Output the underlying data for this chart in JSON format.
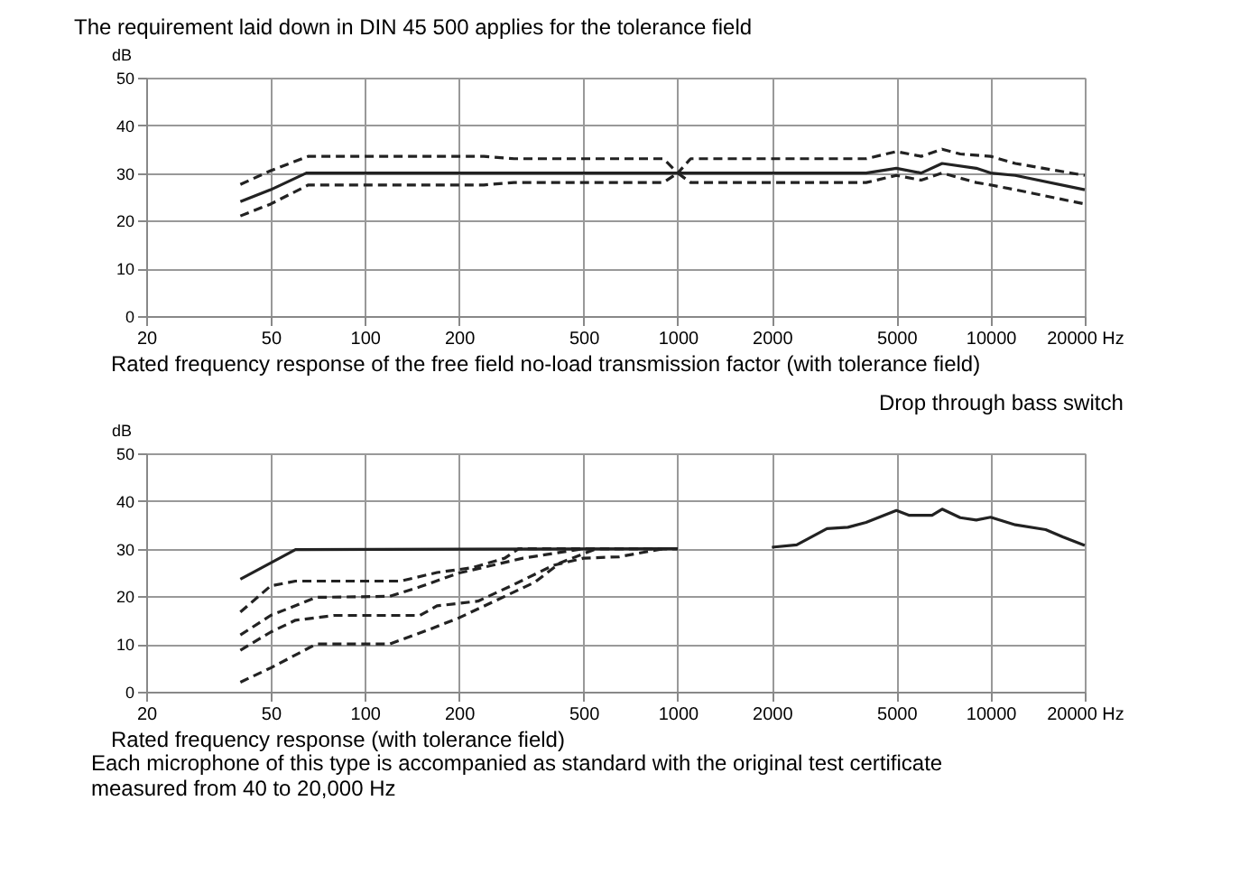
{
  "chart_data": [
    {
      "type": "line",
      "title": "The requirement laid down in DIN 45 500 applies for the tolerance field",
      "xlabel": "Rated frequency response of the free field no-load transmission factor (with tolerance field)",
      "ylabel": "dB",
      "log": "x",
      "grid": true,
      "xlim": [
        20,
        20000
      ],
      "ylim": [
        0,
        50
      ],
      "xticks": [
        20,
        50,
        100,
        200,
        500,
        1000,
        2000,
        5000,
        10000,
        {
          "value": 20000,
          "label": "20000 Hz"
        }
      ],
      "yticks": [
        0,
        10,
        20,
        30,
        40,
        50
      ],
      "series": [
        {
          "color": "#222222",
          "line_style": "dashed",
          "x": [
            40,
            50,
            66,
            240,
            300,
            900,
            1000,
            1100,
            4000,
            5000,
            6000,
            7000,
            8000,
            10000,
            12000,
            20000
          ],
          "values": [
            27.6,
            30.5,
            33.5,
            33.5,
            33,
            33,
            30,
            33,
            33,
            34.5,
            33.5,
            35,
            34,
            33.5,
            32,
            29.5
          ]
        },
        {
          "color": "#222222",
          "line_style": "solid",
          "x": [
            40,
            50,
            65,
            1000,
            4000,
            5000,
            6000,
            7000,
            9000,
            10000,
            12000,
            20000
          ],
          "values": [
            24,
            26.5,
            30,
            30,
            30,
            31,
            30,
            32,
            31,
            30,
            29.5,
            26.5
          ]
        },
        {
          "color": "#222222",
          "line_style": "dashed",
          "x": [
            40,
            50,
            66,
            240,
            300,
            900,
            1000,
            1100,
            4000,
            5000,
            6000,
            7000,
            9000,
            10000,
            12000,
            20000
          ],
          "values": [
            21,
            23.5,
            27.5,
            27.5,
            28,
            28,
            30,
            28,
            28,
            29.5,
            28.5,
            30,
            28,
            27.5,
            26.5,
            23.5
          ]
        }
      ]
    },
    {
      "type": "line",
      "title": "Drop through bass switch",
      "xlabel": "Rated frequency response (with tolerance field)",
      "ylabel": "dB",
      "annotations": [
        "Each microphone of this type is accompanied as standard with the original test certificate measured from 40 to 20,000 Hz"
      ],
      "log": "x",
      "grid": true,
      "xlim": [
        20,
        20000
      ],
      "ylim": [
        0,
        50
      ],
      "xticks": [
        20,
        50,
        100,
        200,
        500,
        1000,
        2000,
        5000,
        10000,
        {
          "value": 20000,
          "label": "20000 Hz"
        }
      ],
      "yticks": [
        0,
        10,
        20,
        30,
        40,
        50
      ],
      "series": [
        {
          "color": "#222222",
          "line_style": "solid",
          "x": [
            40,
            50,
            60,
            1000
          ],
          "values": [
            23.6,
            27,
            29.8,
            30
          ]
        },
        {
          "color": "#222222",
          "line_style": "dashed",
          "x": [
            40,
            50,
            60,
            130,
            170,
            220,
            280,
            310,
            1000
          ],
          "values": [
            16.7,
            22.2,
            23.2,
            23.2,
            25,
            26,
            28,
            30,
            30
          ]
        },
        {
          "color": "#222222",
          "line_style": "dashed",
          "x": [
            40,
            50,
            70,
            120,
            150,
            200,
            320,
            400,
            500,
            1000
          ],
          "values": [
            11.9,
            16,
            19.8,
            20,
            22,
            24.9,
            28,
            29,
            30,
            30
          ]
        },
        {
          "color": "#222222",
          "line_style": "dashed",
          "x": [
            40,
            50,
            60,
            80,
            150,
            170,
            230,
            300,
            400,
            500,
            650,
            900
          ],
          "values": [
            8.7,
            12.5,
            15,
            16,
            16,
            18,
            19,
            22.5,
            26.5,
            28,
            28.3,
            30
          ]
        },
        {
          "color": "#222222",
          "line_style": "dashed",
          "x": [
            40,
            50,
            70,
            120,
            160,
            200,
            280,
            350,
            420,
            550
          ],
          "values": [
            2,
            5,
            10,
            10,
            13,
            15.5,
            20,
            23,
            27,
            30
          ]
        },
        {
          "color": "#222222",
          "line_style": "solid",
          "x": [
            2000,
            2400,
            3000,
            3500,
            4000,
            5000,
            5500,
            6500,
            7000,
            8000,
            9000,
            10000,
            12000,
            15000,
            17000,
            20000
          ],
          "values": [
            30.3,
            30.8,
            34.2,
            34.5,
            35.5,
            38,
            37,
            37,
            38.3,
            36.5,
            36,
            36.6,
            35,
            34,
            32.5,
            30.7
          ]
        }
      ]
    }
  ]
}
